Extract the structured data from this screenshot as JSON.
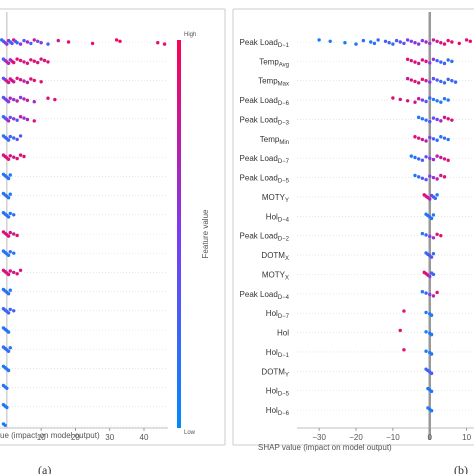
{
  "colorbar": {
    "label": "Feature value",
    "high": "High",
    "low": "Low",
    "color_high": "#ff0052",
    "color_low": "#008bfb"
  },
  "chart_data": [
    {
      "type": "scatter",
      "panel_label": "(a)",
      "xlabel": "SHAP value (impact on model output)",
      "xlabel_visible": "ue (impact on model output)",
      "xlim": [
        -2,
        47
      ],
      "x_ticks": [
        10,
        20,
        30,
        40
      ],
      "features": [
        {
          "name": "",
          "values": [
            -1.5,
            -1,
            -0.5,
            0,
            0.5,
            1,
            1.5,
            2,
            2.5,
            3,
            4,
            5,
            6,
            7,
            8,
            9,
            10,
            12,
            15,
            18,
            25,
            32,
            33,
            44,
            46
          ],
          "colors": [
            0.2,
            0.3,
            0.4,
            0.6,
            0.7,
            0.2,
            0.3,
            0.8,
            0.5,
            0.2,
            0.6,
            0.3,
            0.7,
            0.3,
            0.8,
            0.4,
            0.6,
            0.3,
            0.8,
            0.9,
            0.9,
            0.95,
            0.95,
            0.9,
            0.9
          ]
        },
        {
          "name": "",
          "values": [
            -1,
            -0.5,
            0,
            0.5,
            1,
            1.5,
            2,
            3,
            4,
            5,
            6,
            7,
            8,
            9,
            10,
            11,
            12
          ],
          "colors": [
            0.3,
            0.4,
            0.8,
            0.7,
            0.6,
            0.8,
            0.9,
            0.85,
            0.9,
            0.8,
            0.9,
            0.85,
            0.9,
            0.85,
            0.8,
            0.9,
            0.85
          ]
        },
        {
          "name": "",
          "values": [
            -1,
            -0.5,
            0,
            0.5,
            1,
            1.5,
            2,
            3,
            4,
            5,
            6,
            7,
            8,
            10
          ],
          "colors": [
            0.4,
            0.5,
            0.9,
            0.8,
            0.85,
            0.9,
            0.8,
            0.85,
            0.9,
            0.7,
            0.8,
            0.85,
            0.9,
            0.9
          ]
        },
        {
          "name": "",
          "values": [
            -1,
            -0.5,
            0,
            0.5,
            1,
            2,
            3,
            4,
            5,
            6,
            8,
            12,
            14
          ],
          "colors": [
            0.3,
            0.4,
            0.6,
            0.5,
            0.7,
            0.6,
            0.8,
            0.5,
            0.7,
            0.8,
            0.6,
            0.9,
            0.85
          ]
        },
        {
          "name": "",
          "values": [
            -1,
            -0.5,
            0,
            0.5,
            1,
            2,
            3,
            4,
            5,
            6,
            8
          ],
          "colors": [
            0.2,
            0.3,
            0.5,
            0.7,
            0.4,
            0.6,
            0.3,
            0.8,
            0.6,
            0.7,
            0.9
          ]
        },
        {
          "name": "",
          "values": [
            -1,
            -0.5,
            0,
            0.5,
            1,
            2,
            3,
            4
          ],
          "colors": [
            0.1,
            0.2,
            0.3,
            0.2,
            0.3,
            0.2,
            0.4,
            0.3
          ]
        },
        {
          "name": "",
          "values": [
            -1,
            -0.5,
            0,
            0.5,
            1,
            2,
            3,
            4,
            5
          ],
          "colors": [
            0.8,
            0.85,
            0.9,
            0.85,
            0.9,
            0.8,
            0.9,
            0.85,
            0.9
          ]
        },
        {
          "name": "",
          "values": [
            -1,
            -0.5,
            0,
            0.5,
            1
          ],
          "colors": [
            0.1,
            0.2,
            0.15,
            0.2,
            0.1
          ]
        },
        {
          "name": "",
          "values": [
            -1,
            -0.5,
            0,
            0.5,
            1
          ],
          "colors": [
            0.1,
            0.15,
            0.2,
            0.15,
            0.1
          ]
        },
        {
          "name": "",
          "values": [
            -1,
            -0.5,
            0,
            0.5,
            1,
            2
          ],
          "colors": [
            0.1,
            0.2,
            0.15,
            0.2,
            0.1,
            0.2
          ]
        },
        {
          "name": "",
          "values": [
            -1,
            -0.5,
            0,
            0.5,
            1,
            2,
            3
          ],
          "colors": [
            0.9,
            0.85,
            0.8,
            0.9,
            0.85,
            0.8,
            0.9
          ]
        },
        {
          "name": "",
          "values": [
            -1,
            -0.5,
            0,
            0.5,
            1,
            2
          ],
          "colors": [
            0.1,
            0.2,
            0.15,
            0.1,
            0.2,
            0.15
          ]
        },
        {
          "name": "",
          "values": [
            -1,
            -0.5,
            0,
            0.5,
            1,
            2,
            3,
            4
          ],
          "colors": [
            0.9,
            0.85,
            0.8,
            0.9,
            0.85,
            0.8,
            0.9,
            0.85
          ]
        },
        {
          "name": "",
          "values": [
            -1,
            -0.5,
            0,
            0.5,
            1
          ],
          "colors": [
            0.1,
            0.2,
            0.15,
            0.2,
            0.1
          ]
        },
        {
          "name": "",
          "values": [
            -1,
            -0.5,
            0,
            0.5,
            1,
            2
          ],
          "colors": [
            0.2,
            0.3,
            0.2,
            0.3,
            0.2,
            0.3
          ]
        },
        {
          "name": "",
          "values": [
            -1,
            -0.5,
            0,
            0.5
          ],
          "colors": [
            0.1,
            0.2,
            0.15,
            0.1
          ]
        },
        {
          "name": "",
          "values": [
            -1,
            -0.5,
            0,
            0.5,
            1
          ],
          "colors": [
            0.2,
            0.15,
            0.2,
            0.15,
            0.2
          ]
        },
        {
          "name": "",
          "values": [
            -1,
            -0.5,
            0,
            0.5
          ],
          "colors": [
            0.1,
            0.15,
            0.1,
            0.15
          ]
        },
        {
          "name": "",
          "values": [
            -1,
            -0.5,
            0
          ],
          "colors": [
            0.15,
            0.1,
            0.15
          ]
        },
        {
          "name": "",
          "values": [
            -1,
            -0.5,
            0
          ],
          "colors": [
            0.1,
            0.15,
            0.1
          ]
        },
        {
          "name": "",
          "values": [
            -1,
            -0.5
          ],
          "colors": [
            0.1,
            0.1
          ]
        }
      ]
    },
    {
      "type": "scatter",
      "panel_label": "(b)",
      "xlabel": "SHAP value (impact on model output)",
      "xlim": [
        -36,
        12
      ],
      "x_ticks": [
        -30,
        -20,
        -10,
        0,
        10
      ],
      "features": [
        {
          "name": "Peak Load",
          "sub": "D−1",
          "values": [
            -30,
            -27,
            -23,
            -20,
            -18,
            -16,
            -15,
            -14,
            -12,
            -11,
            -10,
            -9,
            -8,
            -7,
            -6,
            -5,
            -4,
            -3,
            -2,
            -1,
            0,
            1,
            2,
            3,
            4,
            5,
            6,
            8,
            10,
            11
          ],
          "colors": [
            0.1,
            0.15,
            0.1,
            0.15,
            0.2,
            0.1,
            0.15,
            0.2,
            0.3,
            0.25,
            0.2,
            0.3,
            0.4,
            0.35,
            0.5,
            0.45,
            0.6,
            0.55,
            0.5,
            0.7,
            0.6,
            0.75,
            0.8,
            0.85,
            0.9,
            0.85,
            0.9,
            0.95,
            0.9,
            0.95
          ]
        },
        {
          "name": "Temp",
          "sub": "Avg",
          "values": [
            -6,
            -5,
            -4,
            -3,
            -2,
            -1,
            0,
            1,
            2,
            3,
            4,
            5,
            6
          ],
          "colors": [
            0.9,
            0.85,
            0.9,
            0.8,
            0.85,
            0.9,
            0.5,
            0.6,
            0.3,
            0.2,
            0.3,
            0.2,
            0.15
          ]
        },
        {
          "name": "Temp",
          "sub": "Max",
          "values": [
            -6,
            -5,
            -4,
            -3,
            -2,
            -1,
            0,
            1,
            2,
            3,
            4,
            5,
            6,
            7
          ],
          "colors": [
            0.8,
            0.85,
            0.9,
            0.85,
            0.9,
            0.8,
            0.5,
            0.4,
            0.3,
            0.25,
            0.2,
            0.3,
            0.2,
            0.25
          ]
        },
        {
          "name": "Peak Load",
          "sub": "D−6",
          "values": [
            -10,
            -8,
            -6,
            -4,
            -3,
            -2,
            -1,
            0,
            1,
            2,
            3,
            4,
            5
          ],
          "colors": [
            0.9,
            0.85,
            0.9,
            0.8,
            0.85,
            0.5,
            0.3,
            0.2,
            0.1,
            0.15,
            0.1,
            0.15,
            0.1
          ]
        },
        {
          "name": "Peak Load",
          "sub": "D−3",
          "values": [
            -3,
            -2,
            -1,
            0,
            1,
            2,
            3,
            4,
            5,
            6
          ],
          "colors": [
            0.1,
            0.2,
            0.15,
            0.3,
            0.4,
            0.5,
            0.7,
            0.8,
            0.9,
            0.85
          ]
        },
        {
          "name": "Temp",
          "sub": "Min",
          "values": [
            -4,
            -3,
            -2,
            -1,
            0,
            1,
            2,
            3,
            4,
            5
          ],
          "colors": [
            0.9,
            0.85,
            0.8,
            0.7,
            0.5,
            0.3,
            0.2,
            0.15,
            0.2,
            0.1
          ]
        },
        {
          "name": "Peak Load",
          "sub": "D−7",
          "values": [
            -5,
            -4,
            -3,
            -2,
            -1,
            0,
            1,
            2,
            3,
            4,
            5
          ],
          "colors": [
            0.1,
            0.15,
            0.2,
            0.3,
            0.4,
            0.5,
            0.6,
            0.7,
            0.8,
            0.85,
            0.9
          ]
        },
        {
          "name": "Peak Load",
          "sub": "D−5",
          "values": [
            -4,
            -3,
            -2,
            -1,
            0,
            1,
            2,
            3,
            4
          ],
          "colors": [
            0.1,
            0.2,
            0.3,
            0.4,
            0.5,
            0.6,
            0.7,
            0.8,
            0.9
          ]
        },
        {
          "name": "MOTY",
          "sub": "Y",
          "values": [
            -1.5,
            -1,
            -0.5,
            0,
            0.5,
            1,
            1.5,
            2
          ],
          "colors": [
            0.9,
            0.85,
            0.8,
            0.7,
            0.5,
            0.3,
            0.2,
            0.1
          ]
        },
        {
          "name": "Hol",
          "sub": "D−4",
          "values": [
            -1,
            -0.5,
            0,
            0.5,
            1
          ],
          "colors": [
            0.1,
            0.2,
            0.15,
            0.2,
            0.1
          ]
        },
        {
          "name": "Peak Load",
          "sub": "D−2",
          "values": [
            -2,
            -1,
            0,
            1,
            2,
            3
          ],
          "colors": [
            0.1,
            0.3,
            0.5,
            0.6,
            0.8,
            0.9
          ]
        },
        {
          "name": "DOTM",
          "sub": "X",
          "values": [
            -1,
            -0.5,
            0,
            0.5,
            1
          ],
          "colors": [
            0.2,
            0.3,
            0.4,
            0.3,
            0.2
          ]
        },
        {
          "name": "MOTY",
          "sub": "X",
          "values": [
            -1.5,
            -1,
            -0.5,
            0,
            0.5,
            1
          ],
          "colors": [
            0.9,
            0.85,
            0.9,
            0.5,
            0.3,
            0.2
          ]
        },
        {
          "name": "Peak Load",
          "sub": "D−4",
          "values": [
            -2,
            -1,
            0,
            1,
            2
          ],
          "colors": [
            0.1,
            0.3,
            0.5,
            0.7,
            0.9
          ]
        },
        {
          "name": "Hol",
          "sub": "D−7",
          "values": [
            -7,
            -1,
            0,
            0.5
          ],
          "colors": [
            0.9,
            0.1,
            0.15,
            0.1
          ]
        },
        {
          "name": "Hol",
          "sub": "",
          "values": [
            -8,
            -1,
            0,
            0.5
          ],
          "colors": [
            0.9,
            0.1,
            0.15,
            0.1
          ]
        },
        {
          "name": "Hol",
          "sub": "D−1",
          "values": [
            -7,
            -1,
            0,
            0.5
          ],
          "colors": [
            0.9,
            0.1,
            0.1,
            0.15
          ]
        },
        {
          "name": "DOTM",
          "sub": "Y",
          "values": [
            -1,
            -0.5,
            0,
            0.5
          ],
          "colors": [
            0.2,
            0.3,
            0.2,
            0.3
          ]
        },
        {
          "name": "Hol",
          "sub": "D−5",
          "values": [
            -0.5,
            0,
            0.5
          ],
          "colors": [
            0.1,
            0.15,
            0.1
          ]
        },
        {
          "name": "Hol",
          "sub": "D−6",
          "values": [
            -0.5,
            0,
            0.5
          ],
          "colors": [
            0.1,
            0.15,
            0.1
          ]
        }
      ]
    }
  ]
}
